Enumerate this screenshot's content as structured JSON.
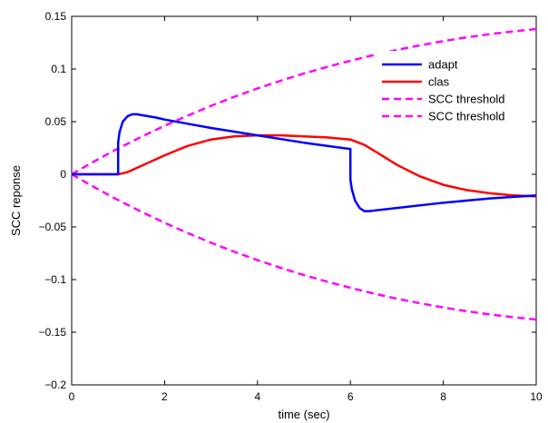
{
  "chart_data": {
    "type": "line",
    "title": "",
    "xlabel": "time (sec)",
    "ylabel": "SCC reponse",
    "xlim": [
      0,
      10
    ],
    "ylim": [
      -0.2,
      0.15
    ],
    "xticks": [
      0,
      2,
      4,
      6,
      8,
      10
    ],
    "xtick_labels": [
      "0",
      "2",
      "4",
      "6",
      "8",
      "10"
    ],
    "yticks": [
      -0.2,
      -0.15,
      -0.1,
      -0.05,
      0,
      0.05,
      0.1,
      0.15
    ],
    "ytick_labels": [
      "−0.2",
      "−0.15",
      "−0.1",
      "−0.05",
      "0",
      "0.05",
      "0.1",
      "0.15"
    ],
    "grid": false,
    "legend_position": "top-right",
    "series": [
      {
        "name": "adapt",
        "color": "#0000ff",
        "dash": "solid",
        "x": [
          0,
          1.0,
          1.0,
          1.03,
          1.1,
          1.2,
          1.3,
          1.4,
          1.6,
          1.8,
          2.0,
          3.0,
          4.0,
          5.0,
          6.0,
          6.0,
          6.03,
          6.1,
          6.2,
          6.3,
          6.4,
          6.6,
          7.0,
          8.0,
          9.0,
          10.0
        ],
        "y": [
          0,
          0,
          0.03,
          0.04,
          0.05,
          0.055,
          0.057,
          0.057,
          0.0555,
          0.054,
          0.052,
          0.044,
          0.037,
          0.03,
          0.024,
          -0.005,
          -0.014,
          -0.025,
          -0.032,
          -0.035,
          -0.035,
          -0.034,
          -0.032,
          -0.027,
          -0.023,
          -0.02
        ]
      },
      {
        "name": "clas",
        "color": "#ff0000",
        "dash": "solid",
        "x": [
          0,
          1.0,
          1.2,
          1.5,
          2.0,
          2.5,
          3.0,
          3.5,
          4.0,
          4.5,
          5.0,
          5.5,
          6.0,
          6.3,
          6.6,
          7.0,
          7.5,
          8.0,
          8.5,
          9.0,
          9.5,
          10.0
        ],
        "y": [
          0,
          0,
          0.002,
          0.008,
          0.018,
          0.027,
          0.033,
          0.036,
          0.037,
          0.037,
          0.036,
          0.035,
          0.033,
          0.028,
          0.02,
          0.009,
          -0.002,
          -0.01,
          -0.015,
          -0.018,
          -0.02,
          -0.021
        ]
      },
      {
        "name": "SCC threshold",
        "color": "#ff00ff",
        "dash": "dashed",
        "x": [
          0,
          0.5,
          1,
          1.5,
          2,
          2.5,
          3,
          3.5,
          4,
          4.5,
          5,
          5.5,
          6,
          6.5,
          7,
          7.5,
          8,
          8.5,
          9,
          9.5,
          10
        ],
        "y": [
          0,
          0.0126,
          0.0245,
          0.0356,
          0.046,
          0.0558,
          0.065,
          0.0736,
          0.0815,
          0.0889,
          0.0957,
          0.102,
          0.1078,
          0.1132,
          0.1181,
          0.1225,
          0.1265,
          0.13,
          0.1331,
          0.1357,
          0.1379
        ]
      },
      {
        "name": "SCC threshold",
        "color": "#ff00ff",
        "dash": "dashed",
        "x": [
          0,
          0.5,
          1,
          1.5,
          2,
          2.5,
          3,
          3.5,
          4,
          4.5,
          5,
          5.5,
          6,
          6.5,
          7,
          7.5,
          8,
          8.5,
          9,
          9.5,
          10
        ],
        "y": [
          0,
          -0.0126,
          -0.0245,
          -0.0356,
          -0.046,
          -0.0558,
          -0.065,
          -0.0736,
          -0.0815,
          -0.0889,
          -0.0957,
          -0.102,
          -0.1078,
          -0.1132,
          -0.1181,
          -0.1225,
          -0.1265,
          -0.13,
          -0.1331,
          -0.1357,
          -0.1379
        ]
      }
    ]
  }
}
